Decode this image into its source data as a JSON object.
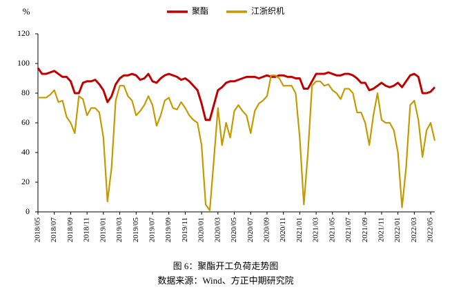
{
  "chart_data": {
    "type": "line",
    "y_label": "%",
    "caption": "图 6：聚酯开工负荷走势图",
    "source": "数据来源：Wind、方正中期研究院",
    "categories": [
      "2018/05",
      null,
      null,
      null,
      "2018/07",
      null,
      null,
      null,
      "2018/09",
      null,
      null,
      null,
      "2018/11",
      null,
      null,
      null,
      "2019/01",
      null,
      null,
      null,
      "2019/03",
      null,
      null,
      null,
      "2019/05",
      null,
      null,
      null,
      "2019/07",
      null,
      null,
      null,
      "2019/09",
      null,
      null,
      null,
      "2019/11",
      null,
      null,
      null,
      "2020/01",
      null,
      null,
      null,
      "2020/03",
      null,
      null,
      null,
      "2020/05",
      null,
      null,
      null,
      "2020/07",
      null,
      null,
      null,
      "2020/09",
      null,
      null,
      null,
      "2020/11",
      null,
      null,
      null,
      "2021/01",
      null,
      null,
      null,
      "2021/03",
      null,
      null,
      null,
      "2021/05",
      null,
      null,
      null,
      "2021/07",
      null,
      null,
      null,
      "2021/09",
      null,
      null,
      null,
      "2021/11",
      null,
      null,
      null,
      "2022/01",
      null,
      null,
      null,
      "2022/03",
      null,
      null,
      null,
      "2022/05",
      null
    ],
    "series": [
      {
        "name": "聚酯",
        "color": "#c00000",
        "values": [
          97,
          93,
          93,
          94,
          95,
          93,
          91,
          91,
          88,
          80,
          80,
          87,
          88,
          88,
          89,
          86,
          82,
          74,
          78,
          86,
          90,
          92,
          92,
          93,
          92,
          89,
          90,
          93,
          88,
          87,
          90,
          92,
          93,
          92,
          91,
          89,
          90,
          88,
          85,
          82,
          73,
          62,
          62,
          72,
          82,
          84,
          87,
          88,
          88,
          89,
          90,
          91,
          91,
          91,
          90,
          91,
          92,
          91,
          91,
          92,
          92,
          91,
          91,
          90,
          90,
          83,
          83,
          88,
          93,
          93,
          93,
          94,
          93,
          92,
          92,
          93,
          93,
          92,
          90,
          87,
          87,
          82,
          83,
          85,
          87,
          85,
          84,
          85,
          87,
          84,
          88,
          92,
          93,
          91,
          80,
          80,
          81,
          84
        ]
      },
      {
        "name": "江浙织机",
        "color": "#c49a00",
        "values": [
          77,
          77,
          77,
          79,
          82,
          74,
          75,
          64,
          60,
          53,
          78,
          76,
          65,
          70,
          70,
          67,
          50,
          7,
          30,
          75,
          85,
          85,
          78,
          75,
          65,
          68,
          72,
          78,
          72,
          58,
          65,
          75,
          77,
          70,
          69,
          74,
          70,
          65,
          62,
          60,
          45,
          5,
          1,
          35,
          70,
          45,
          60,
          50,
          68,
          72,
          68,
          65,
          53,
          68,
          73,
          75,
          78,
          92,
          92,
          90,
          85,
          85,
          85,
          80,
          50,
          5,
          40,
          85,
          88,
          88,
          85,
          86,
          82,
          80,
          76,
          83,
          83,
          80,
          67,
          67,
          60,
          45,
          65,
          80,
          62,
          60,
          60,
          55,
          40,
          3,
          30,
          72,
          75,
          62,
          37,
          55,
          60,
          48
        ]
      }
    ],
    "ylim": [
      0,
      120
    ],
    "yticks": [
      0,
      20,
      40,
      60,
      80,
      100,
      120
    ],
    "grid": false,
    "legend": "top"
  }
}
